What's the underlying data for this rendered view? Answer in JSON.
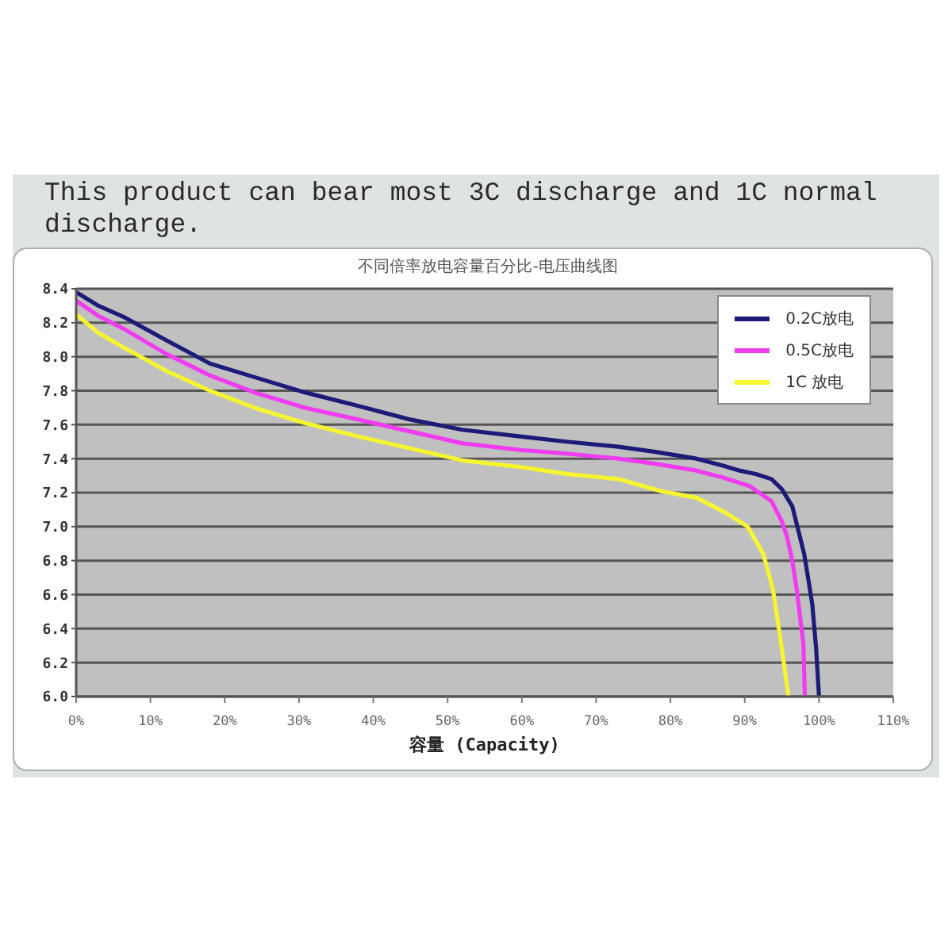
{
  "chart_data": {
    "type": "line",
    "title": "This product can bear most 3C discharge and 1C normal discharge.",
    "subtitle": "不同倍率放电容量百分比-电压曲线图",
    "xlabel": "容量 (Capacity)",
    "xlim": [
      0,
      110
    ],
    "xticks": [
      {
        "value": 0,
        "label": "0%"
      },
      {
        "value": 10,
        "label": "10%"
      },
      {
        "value": 20,
        "label": "20%"
      },
      {
        "value": 30,
        "label": "30%"
      },
      {
        "value": 40,
        "label": "40%"
      },
      {
        "value": 50,
        "label": "50%"
      },
      {
        "value": 60,
        "label": "60%"
      },
      {
        "value": 70,
        "label": "70%"
      },
      {
        "value": 80,
        "label": "80%"
      },
      {
        "value": 90,
        "label": "90%"
      },
      {
        "value": 100,
        "label": "100%"
      },
      {
        "value": 110,
        "label": "110%"
      }
    ],
    "ylim": [
      6,
      8.4
    ],
    "yticks": [
      {
        "value": 6,
        "label": "6.0"
      },
      {
        "value": 6.2,
        "label": "6.2"
      },
      {
        "value": 6.4,
        "label": "6.4"
      },
      {
        "value": 6.6,
        "label": "6.6"
      },
      {
        "value": 6.8,
        "label": "6.8"
      },
      {
        "value": 7,
        "label": "7.0"
      },
      {
        "value": 7.2,
        "label": "7.2"
      },
      {
        "value": 7.4,
        "label": "7.4"
      },
      {
        "value": 7.6,
        "label": "7.6"
      },
      {
        "value": 7.8,
        "label": "7.8"
      },
      {
        "value": 8,
        "label": "8.0"
      },
      {
        "value": 8.2,
        "label": "8.2"
      },
      {
        "value": 8.4,
        "label": "8.4"
      }
    ],
    "grid": "y",
    "legend": "top right",
    "marker": "none",
    "line_style": "solid",
    "series": [
      {
        "name": "0.2C放电",
        "color": "#1c1c78",
        "x": [
          0,
          3,
          6.6,
          12,
          18,
          24,
          30.8,
          38,
          45,
          52,
          60,
          66,
          73,
          78,
          83.5,
          87,
          89.3,
          91.5,
          93.6,
          95,
          96.4,
          97.2,
          98,
          98.6,
          99.1,
          99.6,
          100
        ],
        "values": [
          8.38,
          8.3,
          8.23,
          8.1,
          7.96,
          7.88,
          7.79,
          7.71,
          7.63,
          7.57,
          7.53,
          7.5,
          7.47,
          7.44,
          7.4,
          7.36,
          7.33,
          7.31,
          7.28,
          7.22,
          7.12,
          6.98,
          6.84,
          6.68,
          6.54,
          6.29,
          6.0
        ]
      },
      {
        "name": "0.5C放电",
        "color": "#f03cf0",
        "x": [
          0,
          3,
          6.6,
          12,
          18,
          24,
          30.8,
          38,
          45,
          52,
          60,
          66,
          73,
          78,
          83.5,
          87,
          90.6,
          93.6,
          95,
          95.7,
          96.4,
          97,
          97.5,
          97.9,
          98.1
        ],
        "values": [
          8.33,
          8.24,
          8.16,
          8.02,
          7.89,
          7.79,
          7.7,
          7.63,
          7.56,
          7.49,
          7.45,
          7.43,
          7.4,
          7.37,
          7.33,
          7.29,
          7.24,
          7.15,
          7.03,
          6.94,
          6.8,
          6.63,
          6.45,
          6.31,
          6.0
        ]
      },
      {
        "name": "1C 放电",
        "color": "#f5f532",
        "x": [
          0,
          3,
          6.6,
          12,
          18,
          24,
          30.8,
          38,
          45,
          52,
          60,
          66,
          73,
          78.6,
          83.5,
          87.1,
          90.4,
          92.5,
          93.8,
          94.9,
          95.9
        ],
        "values": [
          8.25,
          8.14,
          8.05,
          7.92,
          7.8,
          7.7,
          7.61,
          7.53,
          7.46,
          7.39,
          7.35,
          7.31,
          7.28,
          7.21,
          7.17,
          7.09,
          7.0,
          6.84,
          6.63,
          6.31,
          6.0
        ]
      }
    ]
  }
}
